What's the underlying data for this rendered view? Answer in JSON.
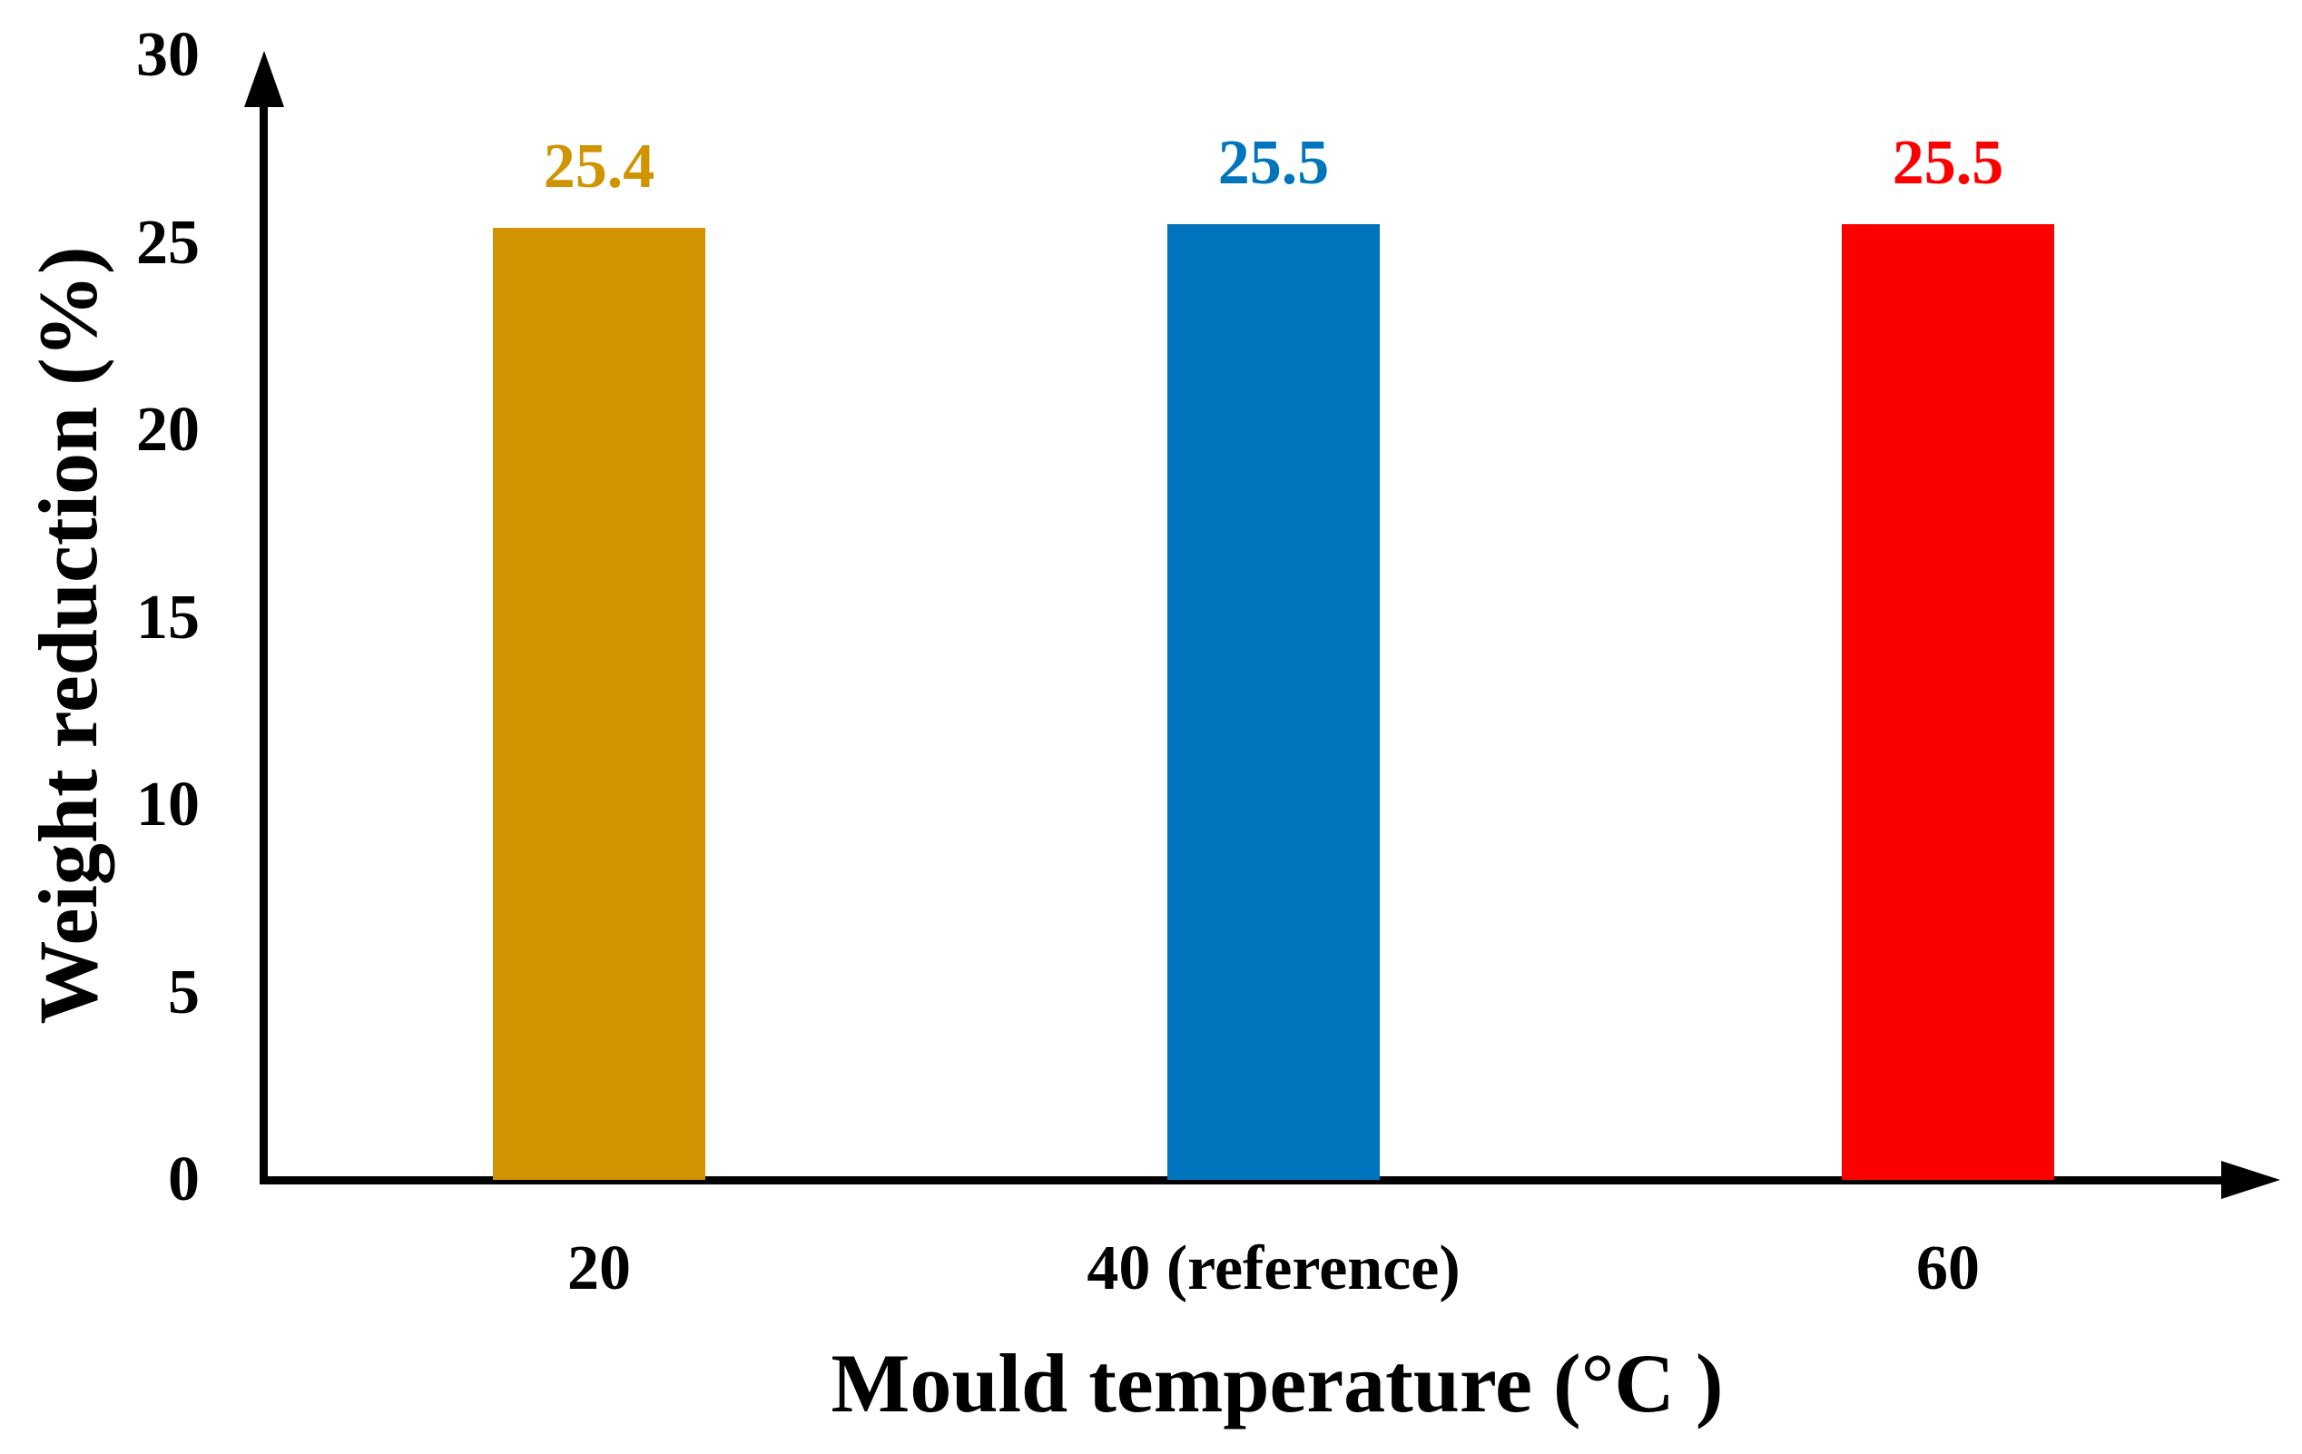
{
  "chart_data": {
    "type": "bar",
    "title": "",
    "xlabel": "Mould temperature (°C )",
    "ylabel": "Weight reduction (%)",
    "categories": [
      "20",
      "40 (reference)",
      "60"
    ],
    "values": [
      25.4,
      25.5,
      25.5
    ],
    "value_labels": [
      "25.4",
      "25.5",
      "25.5"
    ],
    "bar_colors": [
      "#D09400",
      "#0074BC",
      "#FC0000"
    ],
    "yticks": [
      0,
      5,
      10,
      15,
      20,
      25,
      30
    ],
    "ylim": [
      0,
      30
    ],
    "grid": false,
    "legend": "none",
    "axis_color": "#000000",
    "background": "#FFFFFF"
  }
}
